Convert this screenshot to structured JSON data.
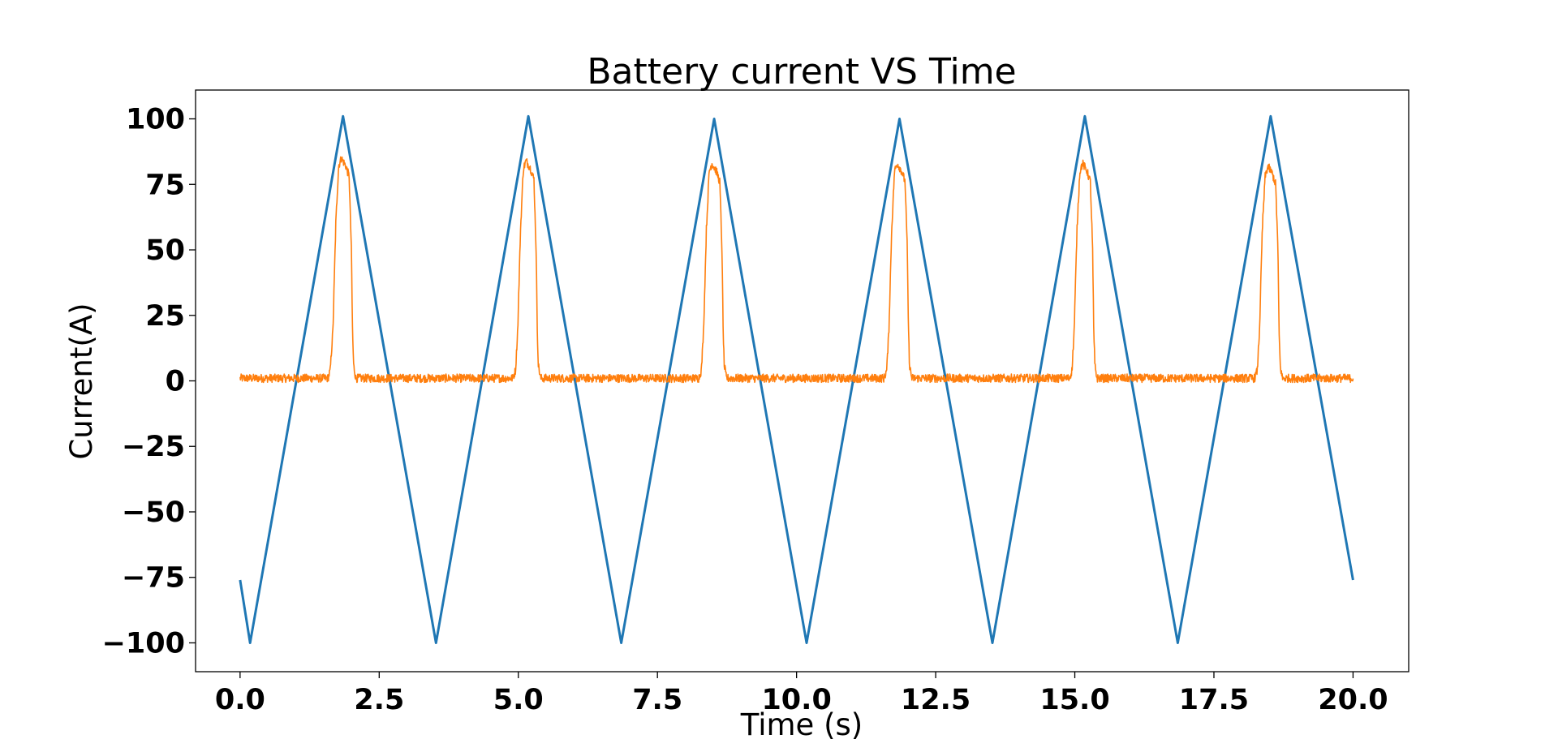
{
  "chart_data": {
    "type": "line",
    "title": "Battery current VS Time",
    "xlabel": "Time (s)",
    "ylabel": "Current(A)",
    "xlim": [
      -0.8,
      21.0
    ],
    "ylim": [
      -111,
      111
    ],
    "xticks": [
      0.0,
      2.5,
      5.0,
      7.5,
      10.0,
      12.5,
      15.0,
      17.5,
      20.0
    ],
    "xtick_labels": [
      "0.0",
      "2.5",
      "5.0",
      "7.5",
      "10.0",
      "12.5",
      "15.0",
      "17.5",
      "20.0"
    ],
    "yticks": [
      100,
      75,
      50,
      25,
      0,
      -25,
      -50,
      -75,
      -100
    ],
    "ytick_labels": [
      "100",
      "75",
      "50",
      "25",
      "0",
      "−25",
      "−50",
      "−75",
      "−100"
    ],
    "grid": false,
    "legend": "none",
    "series": [
      {
        "color": "#1f77b4",
        "x": [
          0.0,
          0.18,
          1.85,
          3.52,
          5.18,
          6.85,
          8.52,
          10.18,
          11.85,
          13.52,
          15.18,
          16.85,
          18.52,
          20.0
        ],
        "y": [
          -76,
          -100,
          101,
          -100,
          101,
          -100,
          100,
          -100,
          100,
          -100,
          101,
          -100,
          101,
          -76
        ]
      },
      {
        "color": "#ff7f0e",
        "noise": 1.6,
        "x": [
          0.0,
          1.58,
          1.62,
          1.67,
          1.72,
          1.77,
          1.82,
          1.9,
          1.96,
          2.0,
          2.02,
          2.04,
          2.08,
          2.14,
          4.9,
          4.95,
          4.99,
          5.04,
          5.09,
          5.14,
          5.22,
          5.28,
          5.32,
          5.34,
          5.36,
          5.4,
          5.46,
          8.24,
          8.29,
          8.33,
          8.38,
          8.43,
          8.48,
          8.56,
          8.62,
          8.66,
          8.68,
          8.7,
          8.74,
          8.8,
          11.57,
          11.62,
          11.66,
          11.71,
          11.76,
          11.81,
          11.89,
          11.95,
          11.99,
          12.01,
          12.03,
          12.07,
          12.13,
          14.9,
          14.95,
          14.99,
          15.04,
          15.09,
          15.14,
          15.22,
          15.28,
          15.32,
          15.34,
          15.36,
          15.4,
          15.46,
          18.23,
          18.28,
          18.32,
          18.37,
          18.42,
          18.47,
          18.55,
          18.61,
          18.65,
          18.67,
          18.69,
          18.73,
          18.79,
          20.0
        ],
        "y": [
          1,
          1,
          4,
          20,
          60,
          82,
          85,
          82,
          78,
          50,
          20,
          6,
          1,
          1,
          1,
          4,
          20,
          58,
          81,
          84,
          81,
          77,
          50,
          20,
          6,
          1,
          1,
          1,
          4,
          20,
          58,
          80,
          83,
          80,
          76,
          50,
          20,
          6,
          1,
          1,
          1,
          4,
          20,
          58,
          80,
          83,
          80,
          76,
          50,
          20,
          6,
          1,
          1,
          1,
          4,
          20,
          58,
          80,
          83,
          80,
          76,
          50,
          20,
          6,
          1,
          1,
          1,
          4,
          20,
          58,
          78,
          82,
          79,
          75,
          50,
          20,
          6,
          1,
          1,
          1
        ]
      }
    ]
  }
}
